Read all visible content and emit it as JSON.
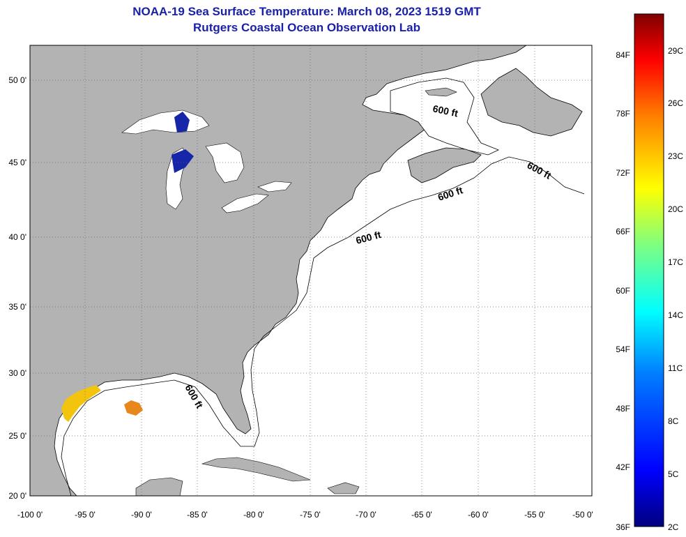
{
  "title": "NOAA-19 Sea Surface Temperature:  March 08, 2023 1519 GMT",
  "subtitle": "Rutgers Coastal Ocean Observation Lab",
  "map": {
    "lon_labels": [
      "-100 0'",
      "-95 0'",
      "-90 0'",
      "-85 0'",
      "-80 0'",
      "-75 0'",
      "-70 0'",
      "-65 0'",
      "-60 0'",
      "-55 0'",
      "-50 0'"
    ],
    "lat_labels": [
      "50 0'",
      "45 0'",
      "40 0'",
      "35 0'",
      "30 0'",
      "25 0'",
      "20 0'"
    ],
    "contour_label": "600 ft",
    "land_color": "#b3b3b3",
    "water_color": "#ffffff",
    "grid": "dotted"
  },
  "colorbar": {
    "f_labels": [
      "84F",
      "78F",
      "72F",
      "66F",
      "60F",
      "54F",
      "48F",
      "42F",
      "36F"
    ],
    "c_labels": [
      "29C",
      "26C",
      "23C",
      "20C",
      "17C",
      "14C",
      "11C",
      "8C",
      "5C",
      "2C"
    ],
    "colors": [
      "#00007f",
      "#0000ff",
      "#007fff",
      "#00ffff",
      "#7fff7f",
      "#ffff00",
      "#ff7f00",
      "#ff0000",
      "#7f0000"
    ]
  }
}
